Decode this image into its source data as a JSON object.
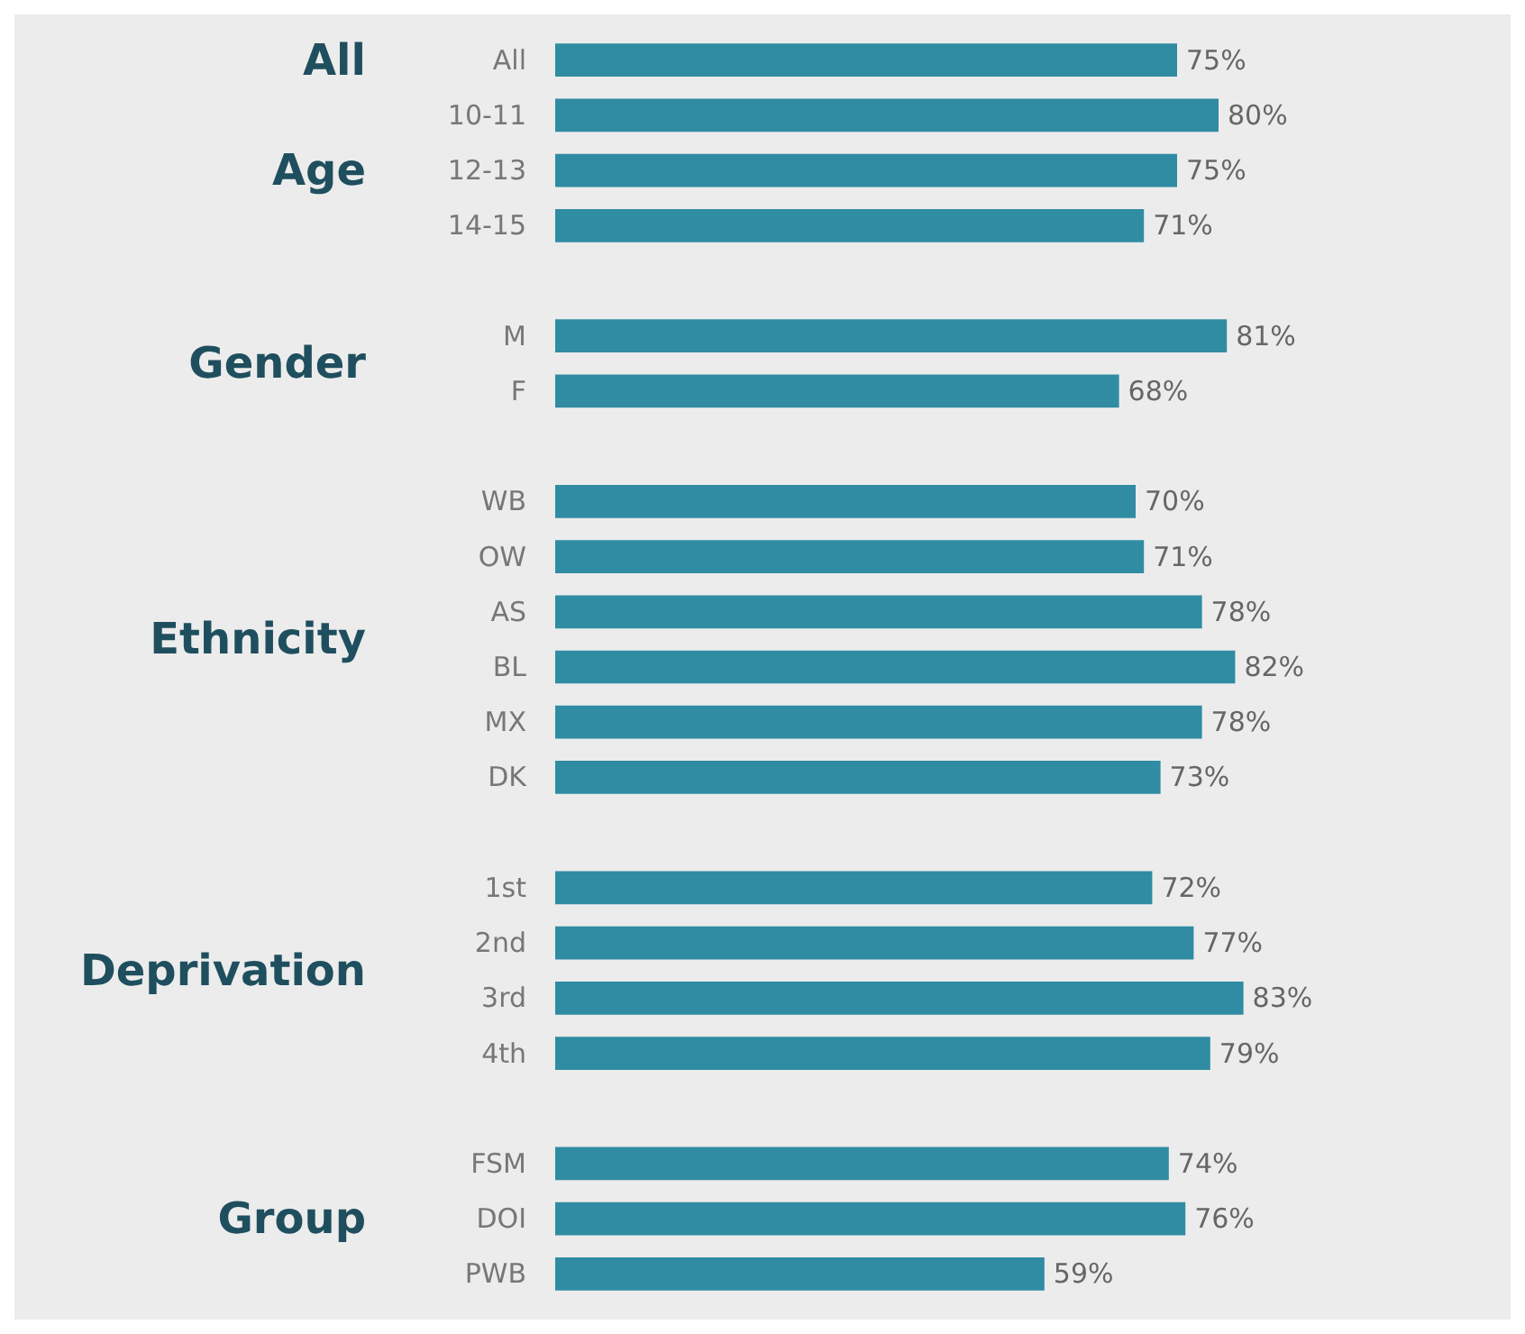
{
  "chart_data": {
    "type": "bar",
    "orientation": "horizontal",
    "categories": [
      "All",
      "10-11",
      "12-13",
      "14-15",
      null,
      "M",
      "F",
      null,
      "WB",
      "OW",
      "AS",
      "BL",
      "MX",
      "DK",
      null,
      "1st",
      "2nd",
      "3rd",
      "4th",
      null,
      "FSM",
      "DOI",
      "PWB"
    ],
    "values": [
      75,
      80,
      75,
      71,
      null,
      81,
      68,
      null,
      70,
      71,
      78,
      82,
      78,
      73,
      null,
      72,
      77,
      83,
      79,
      null,
      74,
      76,
      59
    ],
    "value_labels": [
      "75%",
      "80%",
      "75%",
      "71%",
      null,
      "81%",
      "68%",
      null,
      "70%",
      "71%",
      "78%",
      "82%",
      "78%",
      "73%",
      null,
      "72%",
      "77%",
      "83%",
      "79%",
      null,
      "74%",
      "76%",
      "59%"
    ],
    "color": "#2f8ca3",
    "annotations": [
      "All",
      "Age",
      "Gender",
      "Ethnicity",
      "Deprivation",
      "Group"
    ]
  }
}
